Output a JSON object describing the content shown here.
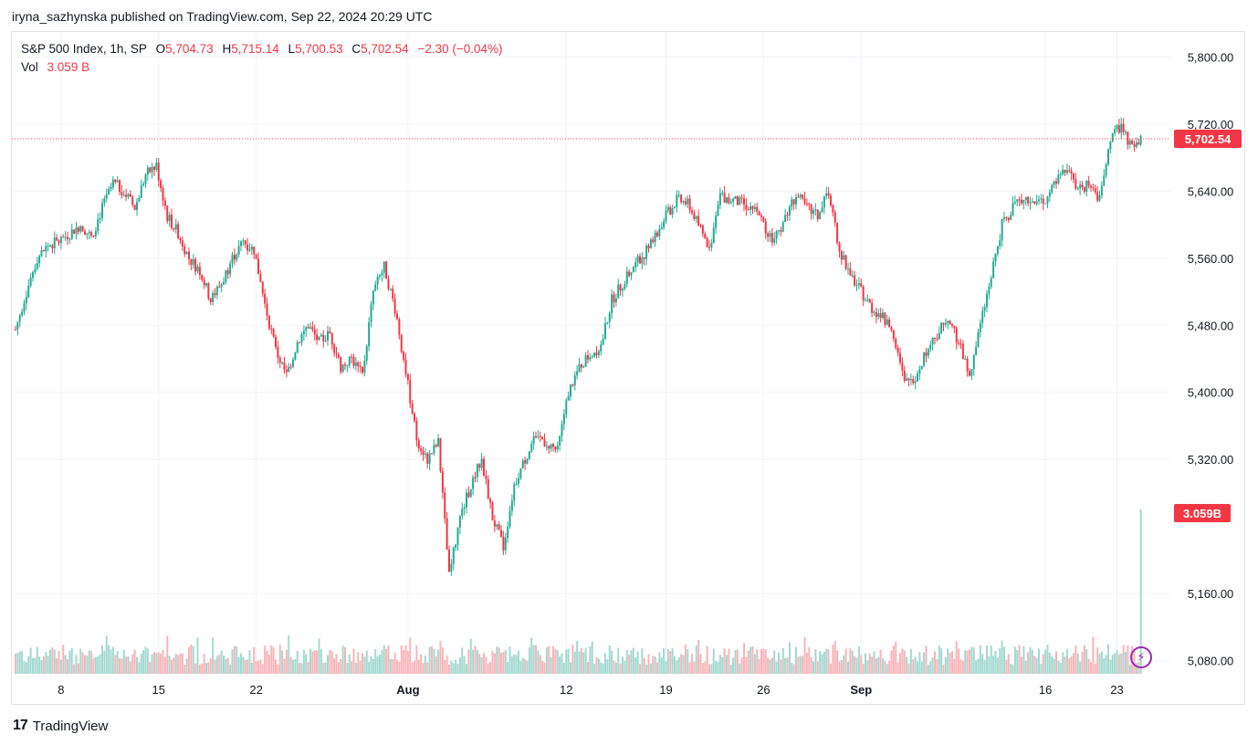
{
  "header": {
    "published_line": "iryna_sazhynska published on TradingView.com, Sep 22, 2024 20:29 UTC"
  },
  "legend": {
    "symbol": "S&P 500 Index, 1h, SP",
    "o_label": "O",
    "o_value": "5,704.73",
    "h_label": "H",
    "h_value": "5,715.14",
    "l_label": "L",
    "l_value": "5,700.53",
    "c_label": "C",
    "c_value": "5,702.54",
    "change": "−2.30 (−0.04%)",
    "vol_label": "Vol",
    "vol_value": "3.059 B"
  },
  "footer": {
    "brand": "TradingView"
  },
  "colors": {
    "up": "#22ab94",
    "down": "#f23645",
    "vol_up": "#a3d9d0",
    "vol_down": "#f7b5ba",
    "grid": "#f0f3fa",
    "axis_text": "#131722"
  },
  "chart_data": {
    "type": "candlestick",
    "interval": "1h",
    "y_axis": {
      "ticks": [
        "5,800.00",
        "5,720.00",
        "5,640.00",
        "5,560.00",
        "5,480.00",
        "5,400.00",
        "5,320.00",
        "5,160.00",
        "5,080.00"
      ],
      "tick_values": [
        5800,
        5720,
        5640,
        5560,
        5480,
        5400,
        5320,
        5160,
        5080
      ],
      "range": [
        5062,
        5830
      ]
    },
    "x_axis": {
      "labels": [
        "8",
        "15",
        "22",
        "Aug",
        "12",
        "19",
        "26",
        "Sep",
        "16",
        "23"
      ]
    },
    "last_price_label": "5,702.54",
    "last_price": 5702.54,
    "volume_label": "3.059B",
    "price_path": [
      [
        0,
        5475
      ],
      [
        5,
        5520
      ],
      [
        10,
        5560
      ],
      [
        15,
        5575
      ],
      [
        20,
        5580
      ],
      [
        25,
        5590
      ],
      [
        30,
        5600
      ],
      [
        35,
        5585
      ],
      [
        40,
        5620
      ],
      [
        45,
        5650
      ],
      [
        50,
        5640
      ],
      [
        55,
        5620
      ],
      [
        60,
        5660
      ],
      [
        65,
        5670
      ],
      [
        70,
        5610
      ],
      [
        75,
        5590
      ],
      [
        80,
        5560
      ],
      [
        85,
        5545
      ],
      [
        90,
        5510
      ],
      [
        95,
        5530
      ],
      [
        100,
        5560
      ],
      [
        105,
        5580
      ],
      [
        110,
        5570
      ],
      [
        115,
        5505
      ],
      [
        120,
        5450
      ],
      [
        125,
        5420
      ],
      [
        130,
        5460
      ],
      [
        135,
        5480
      ],
      [
        140,
        5460
      ],
      [
        145,
        5470
      ],
      [
        150,
        5430
      ],
      [
        155,
        5440
      ],
      [
        160,
        5420
      ],
      [
        165,
        5520
      ],
      [
        170,
        5550
      ],
      [
        175,
        5500
      ],
      [
        180,
        5425
      ],
      [
        185,
        5345
      ],
      [
        190,
        5320
      ],
      [
        195,
        5340
      ],
      [
        200,
        5180
      ],
      [
        205,
        5250
      ],
      [
        210,
        5290
      ],
      [
        215,
        5320
      ],
      [
        220,
        5250
      ],
      [
        225,
        5215
      ],
      [
        230,
        5290
      ],
      [
        235,
        5320
      ],
      [
        240,
        5350
      ],
      [
        245,
        5340
      ],
      [
        250,
        5330
      ],
      [
        255,
        5400
      ],
      [
        260,
        5430
      ],
      [
        265,
        5445
      ],
      [
        270,
        5455
      ],
      [
        275,
        5510
      ],
      [
        280,
        5530
      ],
      [
        285,
        5550
      ],
      [
        290,
        5565
      ],
      [
        295,
        5585
      ],
      [
        300,
        5610
      ],
      [
        305,
        5630
      ],
      [
        310,
        5625
      ],
      [
        315,
        5600
      ],
      [
        320,
        5570
      ],
      [
        325,
        5635
      ],
      [
        330,
        5630
      ],
      [
        335,
        5625
      ],
      [
        340,
        5620
      ],
      [
        345,
        5600
      ],
      [
        350,
        5580
      ],
      [
        355,
        5610
      ],
      [
        360,
        5635
      ],
      [
        365,
        5620
      ],
      [
        370,
        5610
      ],
      [
        375,
        5640
      ],
      [
        380,
        5570
      ],
      [
        385,
        5540
      ],
      [
        390,
        5520
      ],
      [
        395,
        5500
      ],
      [
        400,
        5490
      ],
      [
        405,
        5470
      ],
      [
        410,
        5410
      ],
      [
        415,
        5420
      ],
      [
        420,
        5450
      ],
      [
        425,
        5470
      ],
      [
        430,
        5490
      ],
      [
        435,
        5460
      ],
      [
        440,
        5420
      ],
      [
        445,
        5480
      ],
      [
        450,
        5540
      ],
      [
        455,
        5600
      ],
      [
        460,
        5620
      ],
      [
        465,
        5635
      ],
      [
        470,
        5625
      ],
      [
        475,
        5630
      ],
      [
        480,
        5650
      ],
      [
        485,
        5665
      ],
      [
        490,
        5640
      ],
      [
        495,
        5650
      ],
      [
        500,
        5630
      ],
      [
        505,
        5700
      ],
      [
        510,
        5720
      ],
      [
        515,
        5690
      ],
      [
        520,
        5702
      ]
    ],
    "total_bars": 520
  }
}
